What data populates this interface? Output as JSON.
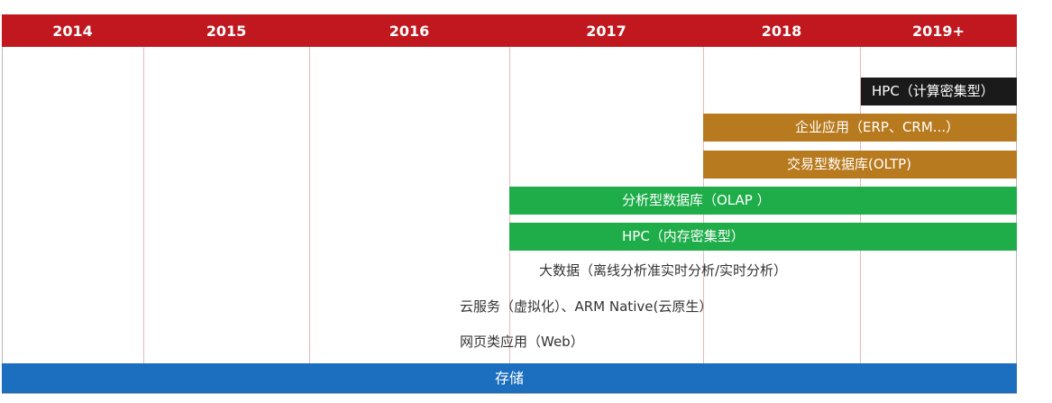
{
  "years": [
    "2014",
    "2015",
    "2016",
    "2017",
    "2018",
    "2019+"
  ],
  "bars": {
    "hpc_compute": "HPC（计算密集型）",
    "enterprise_app": "企业应用（ERP、CRM...）",
    "oltp": "交易型数据库(OLTP)",
    "olap": "分析型数据库（OLAP  ）",
    "hpc_memory": "HPC（内存密集型）"
  },
  "labels": {
    "big_data": "大数据（离线分析准实时分析/实时分析）",
    "cloud": "云服务（虚拟化）、ARM  Native(云原生）",
    "web": "网页类应用（Web）"
  },
  "storage": "存储",
  "colors": {
    "header": "#c0181e",
    "hpc_compute": "#1a1a1a",
    "enterprise": "#b87a1e",
    "analytics": "#1fad4a",
    "storage": "#1b6fbe"
  }
}
